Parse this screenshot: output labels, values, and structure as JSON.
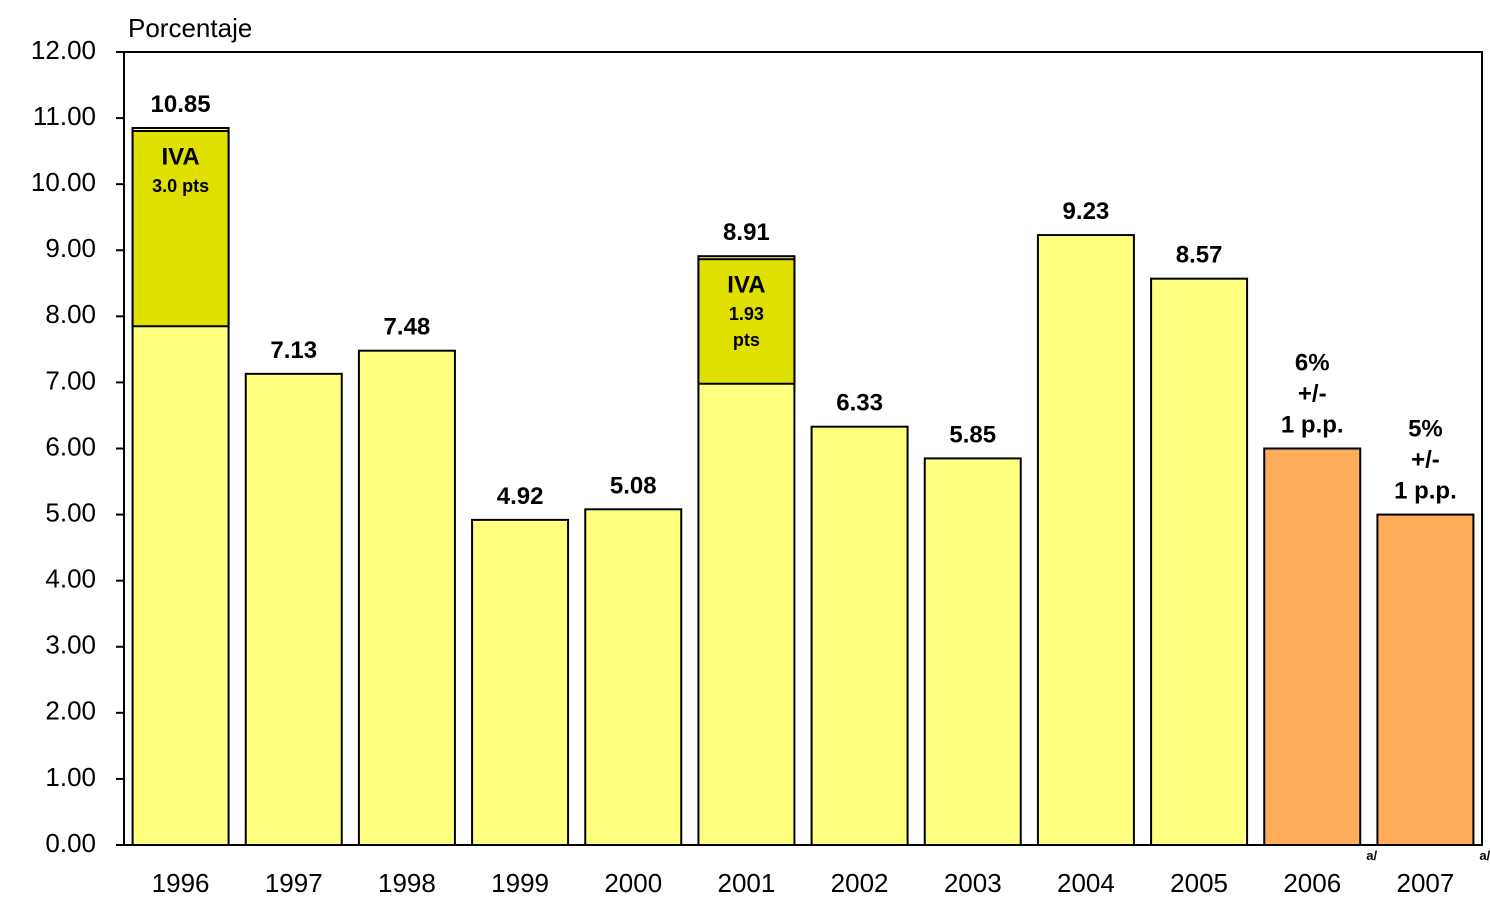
{
  "chart_data": {
    "type": "bar",
    "y_axis_label": "Porcentaje",
    "categories": [
      "1996",
      "1997",
      "1998",
      "1999",
      "2000",
      "2001",
      "2002",
      "2003",
      "2004",
      "2005",
      "2006",
      "2007"
    ],
    "category_notes": [
      null,
      null,
      null,
      null,
      null,
      null,
      null,
      null,
      null,
      null,
      "a/",
      "a/"
    ],
    "values": [
      10.85,
      7.13,
      7.48,
      4.92,
      5.08,
      8.91,
      6.33,
      5.85,
      9.23,
      8.57,
      6,
      5
    ],
    "value_labels": [
      "10.85",
      "7.13",
      "7.48",
      "4.92",
      "5.08",
      "8.91",
      "6.33",
      "5.85",
      "9.23",
      "8.57",
      "6%\n+/-\n1 p.p.",
      "5%\n+/-\n1 p.p."
    ],
    "colors": [
      "#ffff80",
      "#ffff80",
      "#ffff80",
      "#ffff80",
      "#ffff80",
      "#ffff80",
      "#ffff80",
      "#ffff80",
      "#ffff80",
      "#ffff80",
      "#ffad5b",
      "#ffad5b"
    ],
    "annotations": [
      {
        "category": "1996",
        "title": "IVA",
        "text": "3.0  pts",
        "value": 3.0,
        "color": "#e0e000"
      },
      {
        "category": "2001",
        "title": "IVA",
        "text": "1.93\npts",
        "value": 1.93,
        "color": "#e0e000"
      }
    ],
    "ylim": [
      0,
      12
    ],
    "yticks": [
      {
        "value": 0,
        "label": "0.00"
      },
      {
        "value": 1,
        "label": "1.00"
      },
      {
        "value": 2,
        "label": "2.00"
      },
      {
        "value": 3,
        "label": "3.00"
      },
      {
        "value": 4,
        "label": "4.00"
      },
      {
        "value": 5,
        "label": "5.00"
      },
      {
        "value": 6,
        "label": "6.00"
      },
      {
        "value": 7,
        "label": "7.00"
      },
      {
        "value": 8,
        "label": "8.00"
      },
      {
        "value": 9,
        "label": "9.00"
      },
      {
        "value": 10,
        "label": "10.00"
      },
      {
        "value": 11,
        "label": "11.00"
      },
      {
        "value": 12,
        "label": "12.00"
      }
    ]
  }
}
